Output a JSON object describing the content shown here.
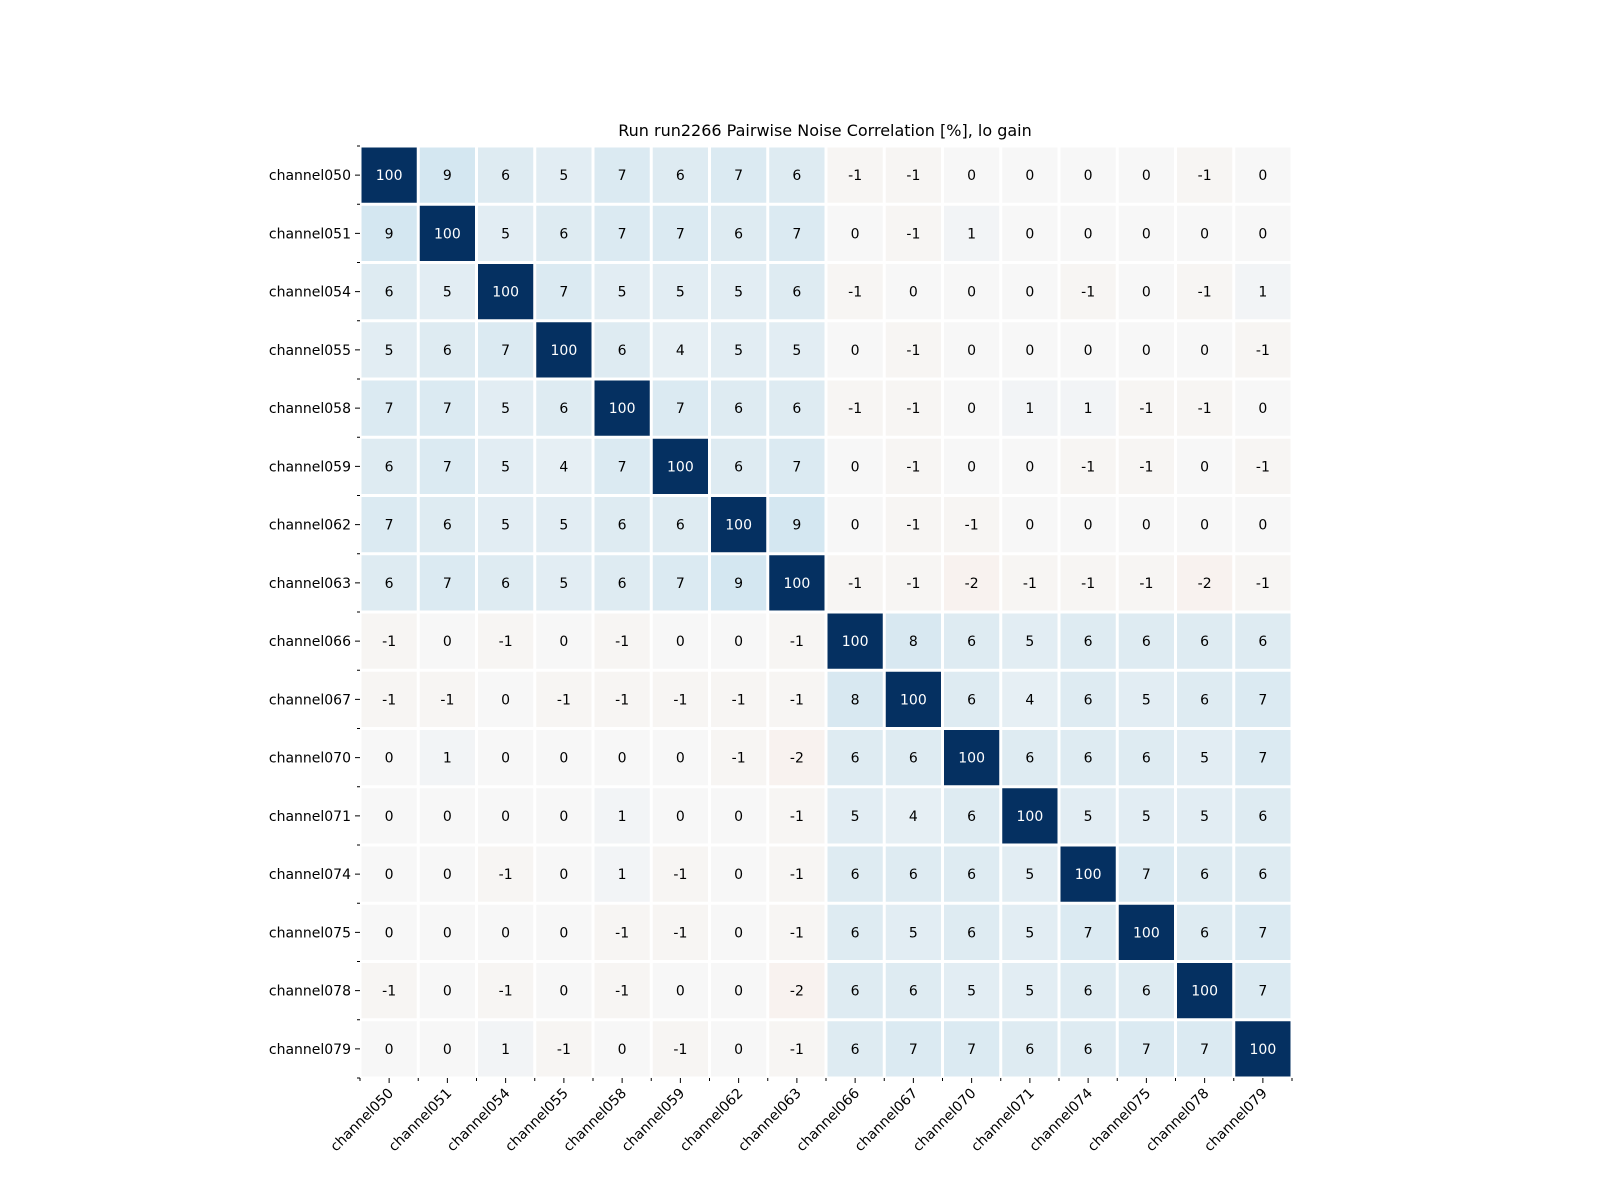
{
  "colors": {
    "positive_max": "#053061",
    "positive_light": "#d1e5f0",
    "neutral": "#f7f7f7",
    "negative_light": "#fddbc7",
    "cell_text_dark": "#000000",
    "cell_text_light": "#ffffff",
    "grid_line": "#ffffff"
  },
  "chart_data": {
    "type": "heatmap",
    "title": "Run run2266 Pairwise Noise Correlation [%], lo gain",
    "xlabel": "",
    "ylabel": "",
    "colormap": "RdBu",
    "vmin": -100,
    "vmax": 100,
    "grid": false,
    "legend": "none",
    "x_labels": [
      "channel050",
      "channel051",
      "channel054",
      "channel055",
      "channel058",
      "channel059",
      "channel062",
      "channel063",
      "channel066",
      "channel067",
      "channel070",
      "channel071",
      "channel074",
      "channel075",
      "channel078",
      "channel079"
    ],
    "y_labels": [
      "channel050",
      "channel051",
      "channel054",
      "channel055",
      "channel058",
      "channel059",
      "channel062",
      "channel063",
      "channel066",
      "channel067",
      "channel070",
      "channel071",
      "channel074",
      "channel075",
      "channel078",
      "channel079"
    ],
    "values": [
      [
        100,
        9,
        6,
        5,
        7,
        6,
        7,
        6,
        -1,
        -1,
        0,
        0,
        0,
        0,
        -1,
        0
      ],
      [
        9,
        100,
        5,
        6,
        7,
        7,
        6,
        7,
        0,
        -1,
        1,
        0,
        0,
        0,
        0,
        0
      ],
      [
        6,
        5,
        100,
        7,
        5,
        5,
        5,
        6,
        -1,
        0,
        0,
        0,
        -1,
        0,
        -1,
        1
      ],
      [
        5,
        6,
        7,
        100,
        6,
        4,
        5,
        5,
        0,
        -1,
        0,
        0,
        0,
        0,
        0,
        -1
      ],
      [
        7,
        7,
        5,
        6,
        100,
        7,
        6,
        6,
        -1,
        -1,
        0,
        1,
        1,
        -1,
        -1,
        0
      ],
      [
        6,
        7,
        5,
        4,
        7,
        100,
        6,
        7,
        0,
        -1,
        0,
        0,
        -1,
        -1,
        0,
        -1
      ],
      [
        7,
        6,
        5,
        5,
        6,
        6,
        100,
        9,
        0,
        -1,
        -1,
        0,
        0,
        0,
        0,
        0
      ],
      [
        6,
        7,
        6,
        5,
        6,
        7,
        9,
        100,
        -1,
        -1,
        -2,
        -1,
        -1,
        -1,
        -2,
        -1
      ],
      [
        -1,
        0,
        -1,
        0,
        -1,
        0,
        0,
        -1,
        100,
        8,
        6,
        5,
        6,
        6,
        6,
        6
      ],
      [
        -1,
        -1,
        0,
        -1,
        -1,
        -1,
        -1,
        -1,
        8,
        100,
        6,
        4,
        6,
        5,
        6,
        7
      ],
      [
        0,
        1,
        0,
        0,
        0,
        0,
        -1,
        -2,
        6,
        6,
        100,
        6,
        6,
        6,
        5,
        7
      ],
      [
        0,
        0,
        0,
        0,
        1,
        0,
        0,
        -1,
        5,
        4,
        6,
        100,
        5,
        5,
        5,
        6
      ],
      [
        0,
        0,
        -1,
        0,
        1,
        -1,
        0,
        -1,
        6,
        6,
        6,
        5,
        100,
        7,
        6,
        6
      ],
      [
        0,
        0,
        0,
        0,
        -1,
        -1,
        0,
        -1,
        6,
        5,
        6,
        5,
        7,
        100,
        6,
        7
      ],
      [
        -1,
        0,
        -1,
        0,
        -1,
        0,
        0,
        -2,
        6,
        6,
        5,
        5,
        6,
        6,
        100,
        7
      ],
      [
        0,
        0,
        1,
        -1,
        0,
        -1,
        0,
        -1,
        6,
        7,
        7,
        6,
        6,
        7,
        7,
        100
      ]
    ]
  }
}
